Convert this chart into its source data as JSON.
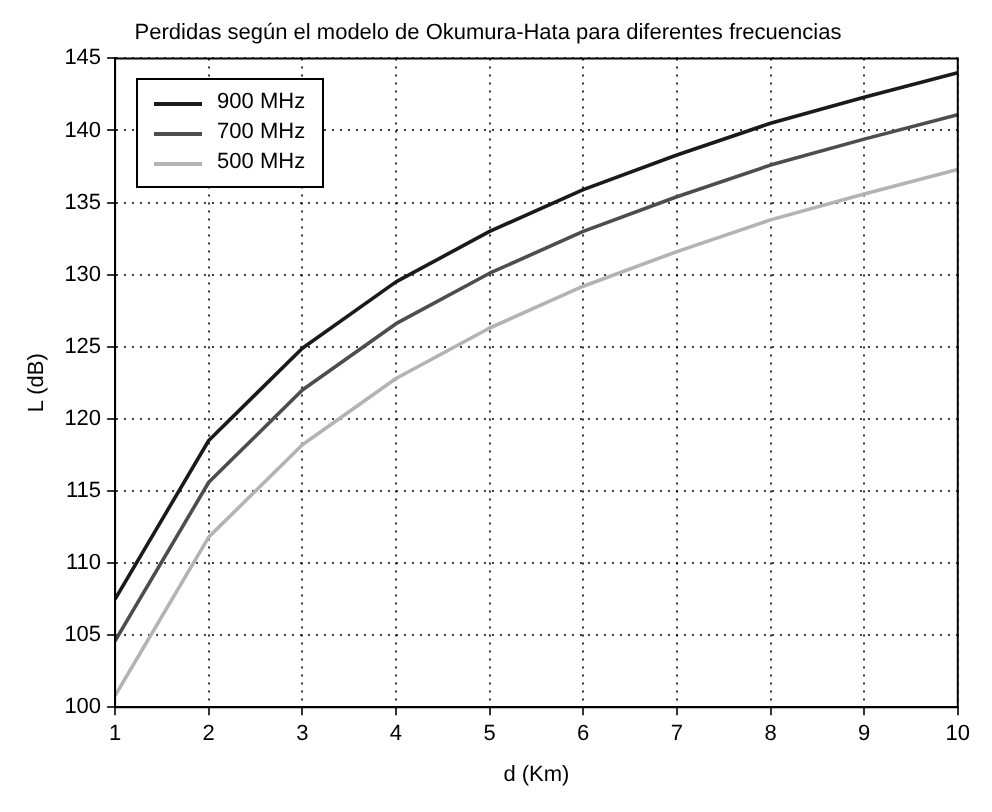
{
  "chart_data": {
    "type": "line",
    "title": "Perdidas según el modelo de Okumura-Hata para diferentes frecuencias",
    "xlabel": "d (Km)",
    "ylabel": "L (dB)",
    "x": [
      1,
      2,
      3,
      4,
      5,
      6,
      7,
      8,
      9,
      10
    ],
    "series": [
      {
        "name": "900 MHz",
        "color": "#1a1a1a",
        "values": [
          107.5,
          118.5,
          124.9,
          129.5,
          133.0,
          135.9,
          138.3,
          140.5,
          142.3,
          144.0
        ]
      },
      {
        "name": "700 MHz",
        "color": "#4d4d4d",
        "values": [
          104.6,
          115.6,
          122.0,
          126.6,
          130.1,
          133.0,
          135.4,
          137.6,
          139.4,
          141.1
        ]
      },
      {
        "name": "500 MHz",
        "color": "#b3b3b3",
        "values": [
          100.8,
          111.8,
          118.2,
          122.8,
          126.3,
          129.2,
          131.6,
          133.8,
          135.6,
          137.3
        ]
      }
    ],
    "xlim": [
      1,
      10
    ],
    "xticks": [
      1,
      2,
      3,
      4,
      5,
      6,
      7,
      8,
      9,
      10
    ],
    "ylim": [
      100,
      145
    ],
    "yticks": [
      100,
      105,
      110,
      115,
      120,
      125,
      130,
      135,
      140,
      145
    ],
    "grid": true,
    "legend": "top left",
    "marker": "none",
    "line_style": "solid"
  }
}
